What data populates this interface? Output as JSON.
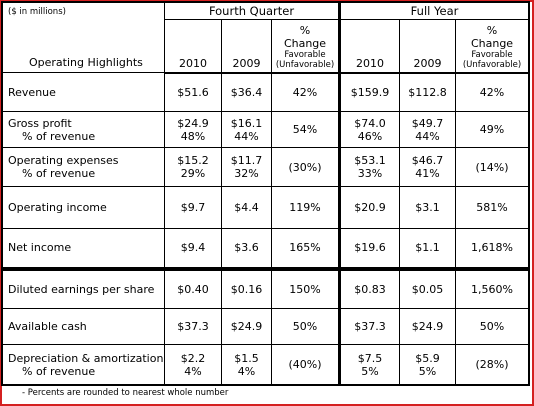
{
  "header": {
    "note": "($ in millions)",
    "label": "Operating Highlights",
    "groups": [
      "Fourth Quarter",
      "Full Year"
    ],
    "columns": [
      [
        "2010"
      ],
      [
        "2009"
      ],
      [
        "%",
        "Change",
        "Favorable",
        "(Unfavorable)"
      ],
      [
        "2010"
      ],
      [
        "2009"
      ],
      [
        "%",
        "Change",
        "Favorable",
        "(Unfavorable)"
      ]
    ]
  },
  "sections": [
    [
      {
        "label": [
          "Revenue"
        ],
        "cells": [
          [
            "$51.6"
          ],
          [
            "$36.4"
          ],
          [
            "42%"
          ],
          [
            "$159.9"
          ],
          [
            "$112.8"
          ],
          [
            "42%"
          ]
        ]
      },
      {
        "label": [
          "Gross profit",
          "% of revenue"
        ],
        "cells": [
          [
            "$24.9",
            "48%"
          ],
          [
            "$16.1",
            "44%"
          ],
          [
            "54%"
          ],
          [
            "$74.0",
            "46%"
          ],
          [
            "$49.7",
            "44%"
          ],
          [
            "49%"
          ]
        ]
      },
      {
        "label": [
          "Operating expenses",
          "% of revenue"
        ],
        "cells": [
          [
            "$15.2",
            "29%"
          ],
          [
            "$11.7",
            "32%"
          ],
          [
            "(30%)"
          ],
          [
            "$53.1",
            "33%"
          ],
          [
            "$46.7",
            "41%"
          ],
          [
            "(14%)"
          ]
        ]
      },
      {
        "label": [
          "Operating income"
        ],
        "cells": [
          [
            "$9.7"
          ],
          [
            "$4.4"
          ],
          [
            "119%"
          ],
          [
            "$20.9"
          ],
          [
            "$3.1"
          ],
          [
            "581%"
          ]
        ]
      },
      {
        "label": [
          "Net income"
        ],
        "cells": [
          [
            "$9.4"
          ],
          [
            "$3.6"
          ],
          [
            "165%"
          ],
          [
            "$19.6"
          ],
          [
            "$1.1"
          ],
          [
            "1,618%"
          ]
        ]
      }
    ],
    [
      {
        "label": [
          "Diluted earnings per share"
        ],
        "cells": [
          [
            "$0.40"
          ],
          [
            "$0.16"
          ],
          [
            "150%"
          ],
          [
            "$0.83"
          ],
          [
            "$0.05"
          ],
          [
            "1,560%"
          ]
        ]
      },
      {
        "label": [
          "Available cash"
        ],
        "cells": [
          [
            "$37.3"
          ],
          [
            "$24.9"
          ],
          [
            "50%"
          ],
          [
            "$37.3"
          ],
          [
            "$24.9"
          ],
          [
            "50%"
          ]
        ]
      },
      {
        "label": [
          "Depreciation & amortization",
          "% of revenue"
        ],
        "cells": [
          [
            "$2.2",
            "4%"
          ],
          [
            "$1.5",
            "4%"
          ],
          [
            "(40%)"
          ],
          [
            "$7.5",
            "5%"
          ],
          [
            "$5.9",
            "5%"
          ],
          [
            "(28%)"
          ]
        ]
      }
    ]
  ],
  "footnote": "- Percents are rounded to nearest whole number"
}
